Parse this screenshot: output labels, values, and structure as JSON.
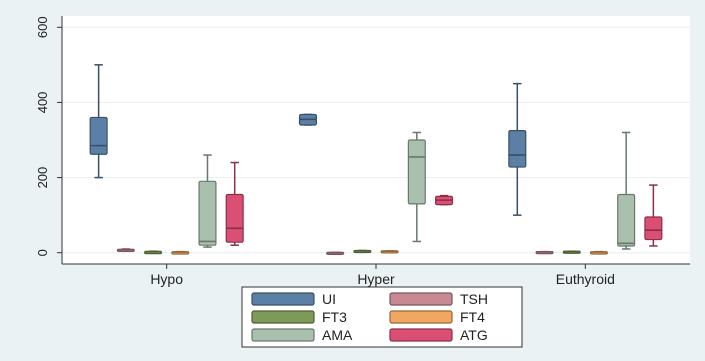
{
  "chart_data": {
    "type": "box",
    "title": "",
    "xlabel": "",
    "ylabel": "",
    "ylim": [
      -30,
      630
    ],
    "yticks": [
      0,
      200,
      400,
      600
    ],
    "ytick_labels": [
      "0",
      "200",
      "400",
      "600"
    ],
    "grid": true,
    "legend_position": "bottom",
    "categories": [
      "Hypo",
      "Hyper",
      "Euthyroid"
    ],
    "series": [
      {
        "name": "UI",
        "color": "#5b7fa5",
        "boxes": [
          {
            "min": 200,
            "q1": 262,
            "median": 285,
            "q3": 360,
            "max": 500
          },
          {
            "min": 340,
            "q1": 340,
            "median": 355,
            "q3": 368,
            "max": 368
          },
          {
            "min": 100,
            "q1": 228,
            "median": 260,
            "q3": 325,
            "max": 450
          }
        ]
      },
      {
        "name": "TSH",
        "color": "#c78a94",
        "boxes": [
          {
            "min": 6,
            "q1": 7,
            "median": 8,
            "q3": 9,
            "max": 10
          },
          {
            "min": 0,
            "q1": 0,
            "median": 0,
            "q3": 1,
            "max": 1
          },
          {
            "min": 1,
            "q1": 2,
            "median": 2,
            "q3": 3,
            "max": 3
          }
        ]
      },
      {
        "name": "FT3",
        "color": "#7d9a58",
        "boxes": [
          {
            "min": 2,
            "q1": 2,
            "median": 3,
            "q3": 3,
            "max": 4
          },
          {
            "min": 4,
            "q1": 4,
            "median": 5,
            "q3": 6,
            "max": 6
          },
          {
            "min": 3,
            "q1": 3,
            "median": 3,
            "q3": 4,
            "max": 4
          }
        ]
      },
      {
        "name": "FT4",
        "color": "#f0a860",
        "boxes": [
          {
            "min": 1,
            "q1": 1,
            "median": 2,
            "q3": 2,
            "max": 3
          },
          {
            "min": 3,
            "q1": 3,
            "median": 4,
            "q3": 5,
            "max": 5
          },
          {
            "min": 1,
            "q1": 1,
            "median": 2,
            "q3": 2,
            "max": 3
          }
        ]
      },
      {
        "name": "AMA",
        "color": "#a9c0ae",
        "boxes": [
          {
            "min": 15,
            "q1": 20,
            "median": 30,
            "q3": 190,
            "max": 260
          },
          {
            "min": 30,
            "q1": 130,
            "median": 255,
            "q3": 300,
            "max": 320
          },
          {
            "min": 10,
            "q1": 18,
            "median": 25,
            "q3": 155,
            "max": 320
          }
        ]
      },
      {
        "name": "ATG",
        "color": "#db4f74",
        "boxes": [
          {
            "min": 20,
            "q1": 28,
            "median": 65,
            "q3": 155,
            "max": 240
          },
          {
            "min": 128,
            "q1": 128,
            "median": 140,
            "q3": 150,
            "max": 152
          },
          {
            "min": 18,
            "q1": 35,
            "median": 60,
            "q3": 95,
            "max": 180
          }
        ]
      }
    ]
  }
}
